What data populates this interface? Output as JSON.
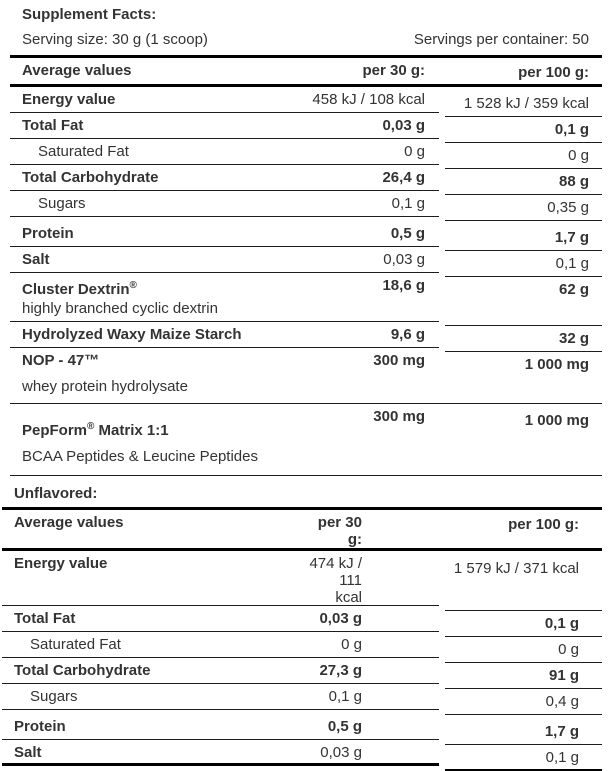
{
  "colors": {
    "text": "#333333",
    "thin_line": "#1c1c1c",
    "thick_line": "#000000",
    "background": "#ffffff"
  },
  "header": {
    "title": "Supplement Facts:",
    "serving_size": "Serving size: 30 g (1 scoop)",
    "servings_per_container": "Servings per container: 50"
  },
  "flavored": {
    "columns": {
      "label": "Average values",
      "per30": "per 30 g:",
      "per100": "per 100 g:"
    },
    "rows": [
      {
        "label": "Energy value",
        "per30": "458 kJ / 108 kcal",
        "per100": "1 528 kJ / 359 kcal"
      },
      {
        "label": "Total Fat",
        "per30": "0,03 g",
        "per100": "0,1 g"
      },
      {
        "label": "Saturated Fat",
        "per30": "0 g",
        "per100": "0 g"
      },
      {
        "label": "Total Carbohydrate",
        "per30": "26,4 g",
        "per100": "88 g"
      },
      {
        "label": "Sugars",
        "per30": "0,1 g",
        "per100": "0,35 g"
      },
      {
        "label": "Protein",
        "per30": "0,5 g",
        "per100": "1,7 g"
      },
      {
        "label": "Salt",
        "per30": "0,03 g",
        "per100": "0,1 g"
      },
      {
        "label_pre": "Cluster Dextrin",
        "label_mark": "®",
        "sub": "highly branched cyclic dextrin",
        "per30": "18,6 g",
        "per100": "62 g"
      },
      {
        "label": "Hydrolyzed Waxy Maize Starch",
        "per30": "9,6 g",
        "per100": "32 g"
      },
      {
        "label": "NOP - 47™",
        "sub": "whey protein hydrolysate",
        "per30": "300 mg",
        "per100": "1 000 mg"
      },
      {
        "label_pre": "PepForm",
        "label_mark": "®",
        "label_post": " Matrix 1:1",
        "sub": "BCAA Peptides & Leucine Peptides",
        "per30": "300 mg",
        "per100": "1 000 mg"
      }
    ]
  },
  "unflavored": {
    "title": "Unflavored:",
    "columns": {
      "label": "Average values",
      "per30": "per 30 g:",
      "per100": "per 100 g:"
    },
    "rows": [
      {
        "label": "Energy value",
        "per30": "474 kJ / 111 kcal",
        "per100": "1 579 kJ / 371 kcal"
      },
      {
        "label": "Total Fat",
        "per30": "0,03 g",
        "per100": "0,1 g"
      },
      {
        "label": "Saturated Fat",
        "per30": "0 g",
        "per100": "0 g"
      },
      {
        "label": "Total Carbohydrate",
        "per30": "27,3 g",
        "per100": "91 g"
      },
      {
        "label": "Sugars",
        "per30": "0,1 g",
        "per100": "0,4 g"
      },
      {
        "label": "Protein",
        "per30": "0,5 g",
        "per100": "1,7 g"
      },
      {
        "label": "Salt",
        "per30": "0,03 g",
        "per100": "0,1 g"
      }
    ]
  }
}
